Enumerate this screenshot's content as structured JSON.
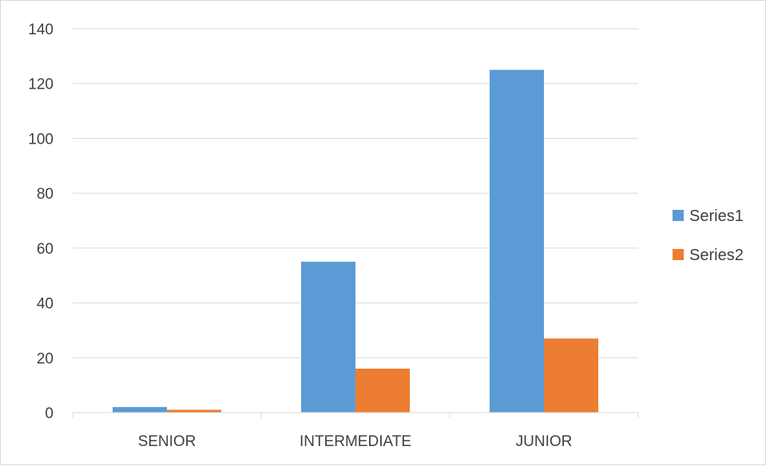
{
  "chart_data": {
    "type": "bar",
    "title": "",
    "xlabel": "",
    "ylabel": "",
    "categories": [
      "SENIOR",
      "INTERMEDIATE",
      "JUNIOR"
    ],
    "series": [
      {
        "name": "Series1",
        "color": "#5b9bd5",
        "values": [
          2,
          55,
          125
        ]
      },
      {
        "name": "Series2",
        "color": "#ed7d31",
        "values": [
          1,
          16,
          27
        ]
      }
    ],
    "ylim": [
      0,
      140
    ],
    "yticks": [
      0,
      20,
      40,
      60,
      80,
      100,
      120,
      140
    ],
    "grid": true,
    "legend": "right"
  }
}
